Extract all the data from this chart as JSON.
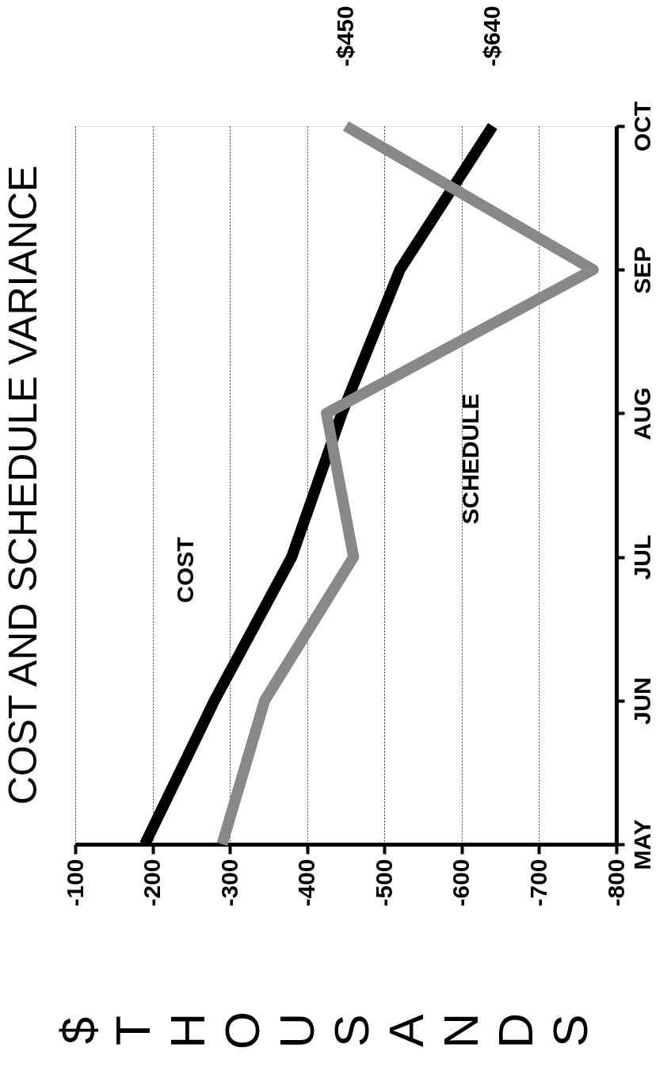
{
  "chart_data": {
    "type": "line",
    "orientation": "horizontal",
    "title": "COST AND SCHEDULE VARIANCE",
    "xlabel": "$ THOUSANDS",
    "categories": [
      "OCT",
      "SEP",
      "AUG",
      "JUL",
      "JUN",
      "MAY"
    ],
    "series": [
      {
        "name": "COST",
        "color": "#000000",
        "values": [
          -640,
          -520,
          -445,
          -380,
          -280,
          -190
        ]
      },
      {
        "name": "SCHEDULE",
        "color": "#888888",
        "values": [
          -450,
          -770,
          -425,
          -460,
          -345,
          -290
        ]
      }
    ],
    "xlim": [
      -100,
      -800
    ],
    "xticks": [
      -100,
      -200,
      -300,
      -400,
      -500,
      -600,
      -700,
      -800
    ],
    "grid": "x",
    "annotations": [
      {
        "text": "-$450",
        "x": -450,
        "y": "OCT"
      },
      {
        "text": "-$640",
        "x": -640,
        "y": "OCT"
      }
    ]
  }
}
